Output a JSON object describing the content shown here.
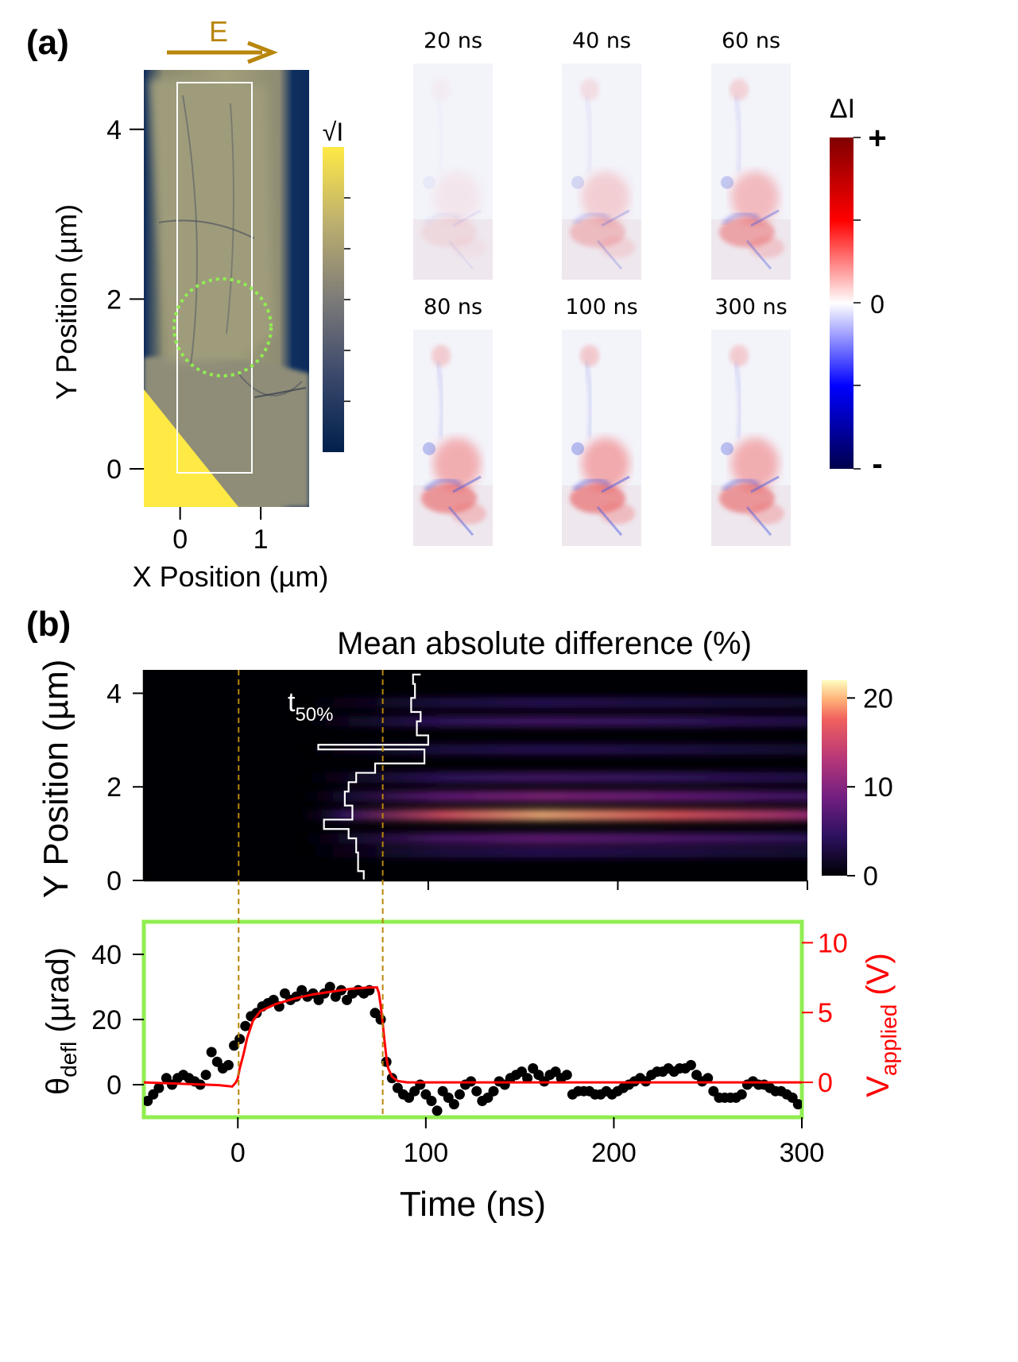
{
  "panel_a": {
    "label": "(a)",
    "field_label": "E",
    "image_colorbar_label": "√I",
    "diff_colorbar_label": "ΔI",
    "diff_colorbar_ticks": [
      "+",
      "0",
      "-"
    ],
    "frame_times": [
      "20 ns",
      "40 ns",
      "60 ns",
      "80 ns",
      "100 ns",
      "300 ns"
    ]
  },
  "panel_b": {
    "label": "(b)",
    "heatmap_title": "Mean absolute difference (%)",
    "t50_label": "t",
    "t50_sub": "50%"
  },
  "colors": {
    "field_arrow": "#B8860B",
    "roi_circle": "#90EE50",
    "frame_box": "#90EE50",
    "guide_lines": "#B8860B",
    "voltage": "#FF0000",
    "deflection_points": "#000000",
    "t50_trace": "#FFFFFF"
  },
  "chart_data": [
    {
      "type": "heatmap",
      "panel": "a-image",
      "xlabel": "X Position (µm)",
      "ylabel": "Y Position (µm)",
      "xlim": [
        -0.45,
        1.6
      ],
      "ylim": [
        -0.45,
        4.7
      ],
      "xticks": [
        0,
        1
      ],
      "yticks": [
        0,
        2,
        4
      ],
      "colorbar": "√I"
    },
    {
      "type": "heatmap",
      "panel": "b-top",
      "title": "Mean absolute difference (%)",
      "xlabel": "",
      "ylabel": "Y Position (µm)",
      "xlim": [
        -50,
        300
      ],
      "ylim": [
        0,
        4.5
      ],
      "yticks": [
        0,
        2,
        4
      ],
      "colorbar_ticks": [
        0,
        10,
        20
      ],
      "band_centers_um": [
        0.6,
        0.9,
        1.4,
        1.8,
        2.2,
        2.8,
        3.4,
        3.8
      ],
      "band_peak_percent": [
        4,
        8,
        20,
        10,
        6,
        4,
        6,
        4
      ],
      "t50_trace": {
        "y": [
          0.0,
          0.2,
          0.6,
          0.9,
          1.1,
          1.3,
          1.6,
          1.9,
          2.1,
          2.3,
          2.5,
          2.8,
          2.9,
          3.1,
          3.4,
          3.6,
          3.9,
          4.2,
          4.4
        ],
        "t": [
          66,
          63,
          62,
          58,
          45,
          60,
          56,
          58,
          62,
          72,
          98,
          42,
          100,
          94,
          96,
          91,
          93,
          92,
          96
        ]
      },
      "guide_lines_ns": [
        0,
        76
      ]
    },
    {
      "type": "scatter",
      "panel": "b-bottom",
      "xlabel": "Time (ns)",
      "ylabel": "θdefl (µrad)",
      "y2label": "Vapplied (V)",
      "xlim": [
        -50,
        300
      ],
      "ylim": [
        -10,
        50
      ],
      "y2lim": [
        -2.5,
        11.5
      ],
      "xticks": [
        0,
        100,
        200,
        300
      ],
      "yticks": [
        0,
        20,
        40
      ],
      "y2ticks": [
        0,
        5,
        10
      ],
      "series": [
        {
          "name": "θdefl",
          "x": [
            -48,
            -45,
            -42,
            -38,
            -35,
            -32,
            -29,
            -26,
            -23,
            -20,
            -17,
            -14,
            -11,
            -8,
            -5,
            -2,
            1,
            4,
            7,
            10,
            13,
            16,
            19,
            22,
            25,
            28,
            31,
            34,
            37,
            40,
            43,
            46,
            49,
            52,
            55,
            58,
            61,
            64,
            67,
            70,
            73,
            76,
            79,
            82,
            85,
            88,
            91,
            94,
            97,
            100,
            103,
            106,
            109,
            112,
            115,
            118,
            121,
            124,
            127,
            130,
            133,
            136,
            139,
            142,
            145,
            148,
            151,
            154,
            157,
            160,
            163,
            166,
            169,
            172,
            175,
            178,
            181,
            184,
            187,
            190,
            193,
            196,
            199,
            202,
            205,
            208,
            211,
            214,
            217,
            220,
            223,
            226,
            229,
            232,
            235,
            238,
            241,
            244,
            247,
            250,
            253,
            256,
            259,
            262,
            265,
            268,
            271,
            274,
            277,
            280,
            283,
            286,
            289,
            292,
            295,
            298
          ],
          "y": [
            -5,
            -3,
            -1,
            2,
            0,
            2,
            3,
            2,
            1,
            0,
            3,
            10,
            7,
            5,
            6,
            12,
            14,
            18,
            21,
            22,
            24,
            25,
            26,
            24,
            28,
            26,
            27,
            29,
            27,
            28,
            26,
            28,
            30,
            27,
            29,
            26,
            28,
            29,
            28,
            29,
            22,
            20,
            7,
            2,
            -1,
            -3,
            -4,
            -2,
            0,
            -3,
            -5,
            -8,
            -2,
            -4,
            -6,
            -3,
            0,
            1,
            -2,
            -5,
            -4,
            -2,
            1,
            0,
            2,
            3,
            4,
            2,
            5,
            3,
            1,
            3,
            4,
            2,
            3,
            -3,
            -2,
            -2,
            -2,
            -3,
            -3,
            -2,
            -3,
            -2,
            -1,
            0,
            1,
            2,
            1,
            3,
            4,
            4,
            5,
            4,
            5,
            5,
            6,
            3,
            1,
            2,
            -2,
            -4,
            -4,
            -4,
            -4,
            -3,
            0,
            1,
            0,
            0,
            -1,
            -2,
            -2,
            -3,
            -4,
            -6
          ]
        },
        {
          "name": "Vapplied",
          "axis": "right",
          "x": [
            -50,
            -10,
            -3,
            -1,
            0,
            1,
            3,
            5,
            8,
            12,
            20,
            30,
            40,
            50,
            60,
            70,
            74,
            75,
            76,
            77,
            78,
            79,
            80,
            82,
            85,
            90,
            100,
            150,
            200,
            250,
            300
          ],
          "y": [
            0,
            -0.2,
            -0.3,
            0,
            0.3,
            1.0,
            2.0,
            3.2,
            4.4,
            5.1,
            5.6,
            6.0,
            6.3,
            6.5,
            6.7,
            6.8,
            6.8,
            6.4,
            5.5,
            4.3,
            3.0,
            1.8,
            1.0,
            0.4,
            0.1,
            0,
            0,
            0,
            0,
            0,
            0
          ]
        }
      ],
      "guide_lines_ns": [
        0,
        76
      ]
    }
  ]
}
